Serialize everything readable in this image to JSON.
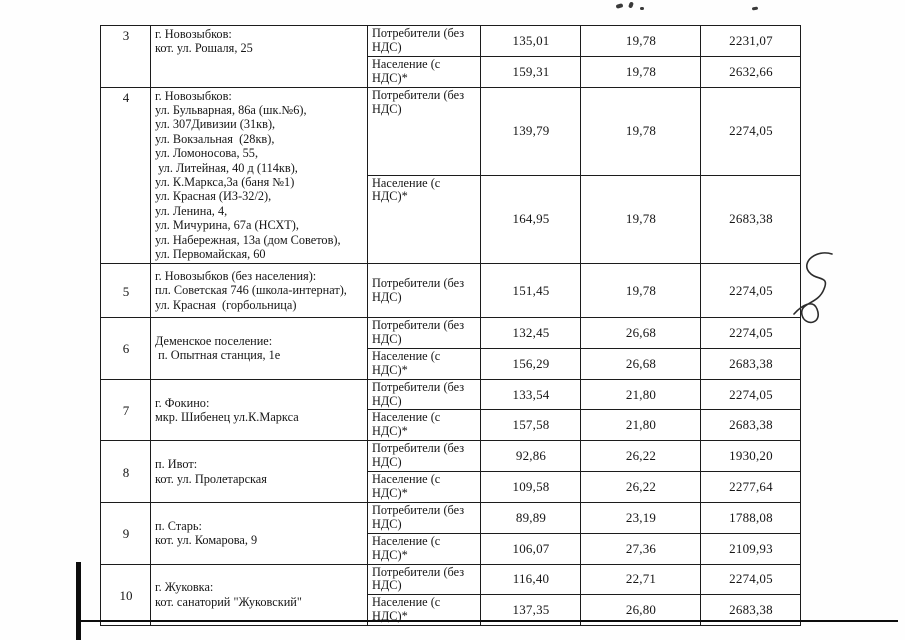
{
  "document": {
    "type": "scanned tariff table page",
    "ink_color": "#1c1c1c",
    "paper_color": "#ffffff"
  },
  "table": {
    "blocks": [
      {
        "rows": [
          {
            "num": "3",
            "location": [
              "г. Новозыбков:",
              "кот. ул. Рошаля, 25"
            ],
            "entries": [
              {
                "category": "Потребители (без НДС)",
                "values": [
                  "135,01",
                  "19,78",
                  "2231,07"
                ]
              },
              {
                "category": "Население (с НДС)*",
                "values": [
                  "159,31",
                  "19,78",
                  "2632,66"
                ]
              }
            ]
          },
          {
            "num": "4",
            "location": [
              "г. Новозыбков:",
              "ул. Бульварная, 86а (шк.№6),",
              "ул. 307Дивизии (31кв),",
              "ул. Вокзальная  (28кв),",
              "ул. Ломоносова, 55,",
              " ул. Литейная, 40 д (114кв),",
              "ул. К.Маркса,3а (баня №1)",
              "ул. Красная (ИЗ-32/2),",
              "ул. Ленина, 4,",
              "ул. Мичурина, 67а (НСХТ),",
              "ул. Набережная, 13а (дом Советов),",
              "ул. Первомайская, 60"
            ],
            "entries": [
              {
                "category": "Потребители (без НДС)",
                "values": [
                  "139,79",
                  "19,78",
                  "2274,05"
                ]
              },
              {
                "category": "Население (с НДС)*",
                "values": [
                  "164,95",
                  "19,78",
                  "2683,38"
                ]
              }
            ]
          }
        ]
      },
      {
        "rows": [
          {
            "num": "5",
            "location": [
              "г. Новозыбков (без населения):",
              "пл. Советская 746 (школа-интернат),",
              "ул. Красная  (горбольница)"
            ],
            "entries": [
              {
                "category": "Потребители (без НДС)",
                "values": [
                  "151,45",
                  "19,78",
                  "2274,05"
                ]
              }
            ]
          },
          {
            "num": "6",
            "location": [
              "Деменское поселение:",
              " п. Опытная станция, 1е"
            ],
            "entries": [
              {
                "category": "Потребители (без НДС)",
                "values": [
                  "132,45",
                  "26,68",
                  "2274,05"
                ]
              },
              {
                "category": "Население (с НДС)*",
                "values": [
                  "156,29",
                  "26,68",
                  "2683,38"
                ]
              }
            ]
          },
          {
            "num": "7",
            "location": [
              "г. Фокино:",
              "мкр. Шибенец ул.К.Маркса"
            ],
            "entries": [
              {
                "category": "Потребители (без НДС)",
                "values": [
                  "133,54",
                  "21,80",
                  "2274,05"
                ]
              },
              {
                "category": "Население (с НДС)*",
                "values": [
                  "157,58",
                  "21,80",
                  "2683,38"
                ]
              }
            ]
          },
          {
            "num": "8",
            "location": [
              "п. Ивот:",
              "кот. ул. Пролетарская"
            ],
            "entries": [
              {
                "category": "Потребители (без НДС)",
                "values": [
                  "92,86",
                  "26,22",
                  "1930,20"
                ]
              },
              {
                "category": "Население (с НДС)*",
                "values": [
                  "109,58",
                  "26,22",
                  "2277,64"
                ]
              }
            ]
          },
          {
            "num": "9",
            "location": [
              "п. Старь:",
              "кот. ул. Комарова, 9"
            ],
            "entries": [
              {
                "category": "Потребители (без НДС)",
                "values": [
                  "89,89",
                  "23,19",
                  "1788,08"
                ]
              },
              {
                "category": "Население (с НДС)*",
                "values": [
                  "106,07",
                  "27,36",
                  "2109,93"
                ]
              }
            ]
          },
          {
            "num": "10",
            "location": [
              "г. Жуковка:",
              "кот. санаторий \"Жуковский\""
            ],
            "entries": [
              {
                "category": "Потребители (без НДС)",
                "values": [
                  "116,40",
                  "22,71",
                  "2274,05"
                ]
              },
              {
                "category": "Население (с НДС)*",
                "values": [
                  "137,35",
                  "26,80",
                  "2683,38"
                ]
              }
            ]
          }
        ]
      }
    ]
  },
  "marks": {
    "signature": "handwritten flourish",
    "specks": [
      "ink speck",
      "ink speck",
      "ink speck",
      "ink speck"
    ]
  }
}
